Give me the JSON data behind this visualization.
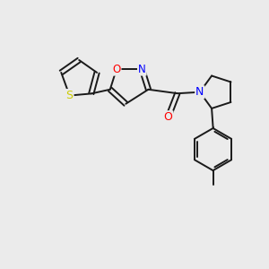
{
  "bg_color": "#ebebeb",
  "bond_color": "#1a1a1a",
  "atom_colors": {
    "S": "#cccc00",
    "O": "#ff0000",
    "N": "#0000ff",
    "C": "#1a1a1a"
  },
  "font_size": 8.5,
  "line_width": 1.4
}
